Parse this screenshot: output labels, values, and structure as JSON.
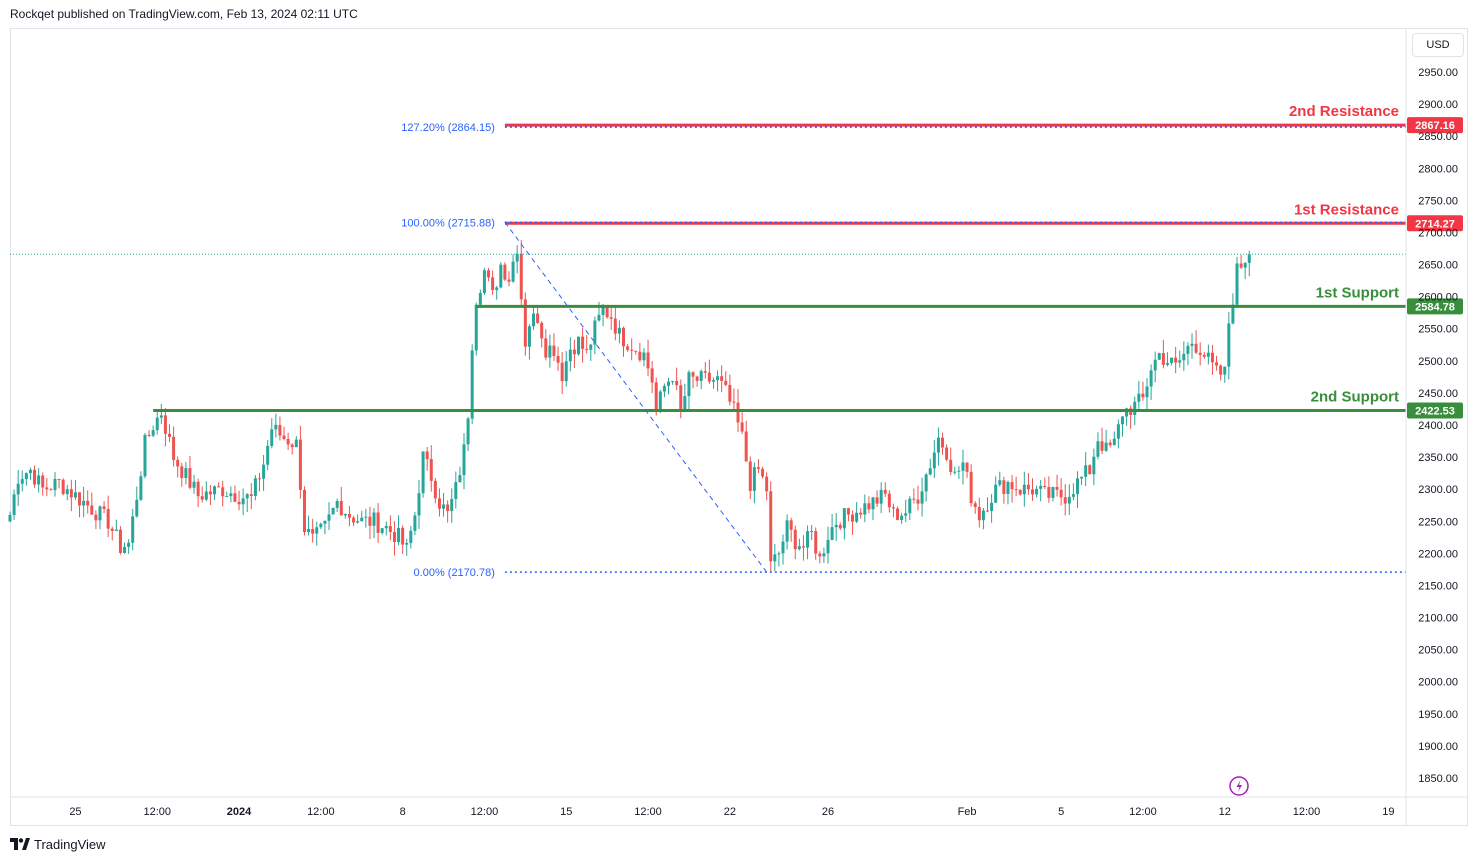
{
  "header": {
    "publisher": "Rockqet published on TradingView.com, Feb 13, 2024 02:11 UTC"
  },
  "currency_button": "USD",
  "footer": {
    "brand": "TradingView"
  },
  "colors": {
    "up": "#26a69a",
    "down": "#ef5350",
    "resistance": "#f23645",
    "support": "#388e3c",
    "fib": "#2962ff",
    "fib_text": "#2962ff"
  },
  "chart_data": {
    "type": "candlestick",
    "title": "",
    "ylabel": "",
    "xlabel": "",
    "ylim": [
      1820,
      2990
    ],
    "y_ticks": [
      1850,
      1900,
      1950,
      2000,
      2050,
      2100,
      2150,
      2200,
      2250,
      2300,
      2350,
      2400,
      2450,
      2500,
      2550,
      2600,
      2650,
      2700,
      2750,
      2800,
      2850,
      2900,
      2950
    ],
    "x_ticks": [
      {
        "label": "25",
        "bar": 16,
        "bold": false
      },
      {
        "label": "12:00",
        "bar": 36,
        "bold": false
      },
      {
        "label": "2024",
        "bar": 56,
        "bold": true
      },
      {
        "label": "12:00",
        "bar": 76,
        "bold": false
      },
      {
        "label": "8",
        "bar": 96,
        "bold": false
      },
      {
        "label": "12:00",
        "bar": 116,
        "bold": false
      },
      {
        "label": "15",
        "bar": 136,
        "bold": false
      },
      {
        "label": "12:00",
        "bar": 156,
        "bold": false
      },
      {
        "label": "22",
        "bar": 176,
        "bold": false
      },
      {
        "label": "26",
        "bar": 200,
        "bold": false
      },
      {
        "label": "Feb",
        "bar": 234,
        "bold": false
      },
      {
        "label": "5",
        "bar": 257,
        "bold": false
      },
      {
        "label": "12:00",
        "bar": 277,
        "bold": false
      },
      {
        "label": "12",
        "bar": 297,
        "bold": false
      },
      {
        "label": "12:00",
        "bar": 317,
        "bold": false
      },
      {
        "label": "19",
        "bar": 337,
        "bold": false
      }
    ],
    "bars": 340,
    "last_bar": 303,
    "last_price": 2666,
    "anchors": [
      [
        0,
        2260
      ],
      [
        2,
        2320
      ],
      [
        5,
        2330
      ],
      [
        8,
        2300
      ],
      [
        12,
        2310
      ],
      [
        16,
        2290
      ],
      [
        20,
        2270
      ],
      [
        24,
        2250
      ],
      [
        27,
        2210
      ],
      [
        29,
        2215
      ],
      [
        31,
        2290
      ],
      [
        33,
        2370
      ],
      [
        35,
        2400
      ],
      [
        37,
        2420
      ],
      [
        40,
        2350
      ],
      [
        43,
        2320
      ],
      [
        46,
        2290
      ],
      [
        49,
        2295
      ],
      [
        52,
        2300
      ],
      [
        56,
        2290
      ],
      [
        59,
        2285
      ],
      [
        62,
        2340
      ],
      [
        64,
        2395
      ],
      [
        67,
        2380
      ],
      [
        70,
        2370
      ],
      [
        71,
        2310
      ],
      [
        72,
        2240
      ],
      [
        74,
        2220
      ],
      [
        77,
        2240
      ],
      [
        80,
        2280
      ],
      [
        83,
        2260
      ],
      [
        86,
        2250
      ],
      [
        89,
        2250
      ],
      [
        92,
        2240
      ],
      [
        95,
        2225
      ],
      [
        97,
        2205
      ],
      [
        99,
        2260
      ],
      [
        101,
        2350
      ],
      [
        103,
        2320
      ],
      [
        105,
        2280
      ],
      [
        107,
        2260
      ],
      [
        109,
        2300
      ],
      [
        111,
        2360
      ],
      [
        112,
        2420
      ],
      [
        113,
        2530
      ],
      [
        114,
        2600
      ],
      [
        116,
        2640
      ],
      [
        118,
        2600
      ],
      [
        120,
        2650
      ],
      [
        122,
        2630
      ],
      [
        124,
        2680
      ],
      [
        125,
        2600
      ],
      [
        126,
        2530
      ],
      [
        127,
        2560
      ],
      [
        129,
        2570
      ],
      [
        131,
        2520
      ],
      [
        133,
        2520
      ],
      [
        135,
        2480
      ],
      [
        137,
        2520
      ],
      [
        139,
        2530
      ],
      [
        141,
        2510
      ],
      [
        143,
        2550
      ],
      [
        145,
        2580
      ],
      [
        147,
        2570
      ],
      [
        149,
        2540
      ],
      [
        151,
        2530
      ],
      [
        153,
        2520
      ],
      [
        155,
        2510
      ],
      [
        157,
        2470
      ],
      [
        158,
        2420
      ],
      [
        160,
        2460
      ],
      [
        162,
        2480
      ],
      [
        164,
        2420
      ],
      [
        166,
        2470
      ],
      [
        168,
        2470
      ],
      [
        170,
        2470
      ],
      [
        173,
        2470
      ],
      [
        175,
        2450
      ],
      [
        177,
        2420
      ],
      [
        179,
        2380
      ],
      [
        181,
        2310
      ],
      [
        183,
        2330
      ],
      [
        185,
        2300
      ],
      [
        186,
        2180
      ],
      [
        188,
        2200
      ],
      [
        190,
        2240
      ],
      [
        192,
        2220
      ],
      [
        194,
        2210
      ],
      [
        196,
        2230
      ],
      [
        198,
        2190
      ],
      [
        200,
        2230
      ],
      [
        202,
        2250
      ],
      [
        205,
        2260
      ],
      [
        208,
        2270
      ],
      [
        211,
        2280
      ],
      [
        214,
        2290
      ],
      [
        216,
        2260
      ],
      [
        219,
        2265
      ],
      [
        222,
        2290
      ],
      [
        225,
        2340
      ],
      [
        227,
        2380
      ],
      [
        229,
        2360
      ],
      [
        231,
        2320
      ],
      [
        233,
        2340
      ],
      [
        235,
        2290
      ],
      [
        237,
        2260
      ],
      [
        239,
        2280
      ],
      [
        241,
        2300
      ],
      [
        244,
        2310
      ],
      [
        247,
        2300
      ],
      [
        250,
        2300
      ],
      [
        253,
        2290
      ],
      [
        256,
        2290
      ],
      [
        258,
        2290
      ],
      [
        261,
        2310
      ],
      [
        264,
        2330
      ],
      [
        266,
        2380
      ],
      [
        268,
        2360
      ],
      [
        270,
        2370
      ],
      [
        272,
        2420
      ],
      [
        275,
        2430
      ],
      [
        277,
        2440
      ],
      [
        279,
        2490
      ],
      [
        281,
        2510
      ],
      [
        283,
        2500
      ],
      [
        285,
        2490
      ],
      [
        287,
        2510
      ],
      [
        289,
        2530
      ],
      [
        291,
        2520
      ],
      [
        293,
        2500
      ],
      [
        295,
        2480
      ],
      [
        297,
        2480
      ],
      [
        298,
        2560
      ],
      [
        299,
        2600
      ],
      [
        300,
        2640
      ],
      [
        301,
        2650
      ],
      [
        302,
        2660
      ],
      [
        303,
        2666
      ]
    ],
    "horizontal_levels": [
      {
        "label": "2nd Resistance",
        "value": 2867.16,
        "value_text": "2867.16",
        "kind": "resistance",
        "from_bar": 121
      },
      {
        "label": "1st Resistance",
        "value": 2714.27,
        "value_text": "2714.27",
        "kind": "resistance",
        "from_bar": 121
      },
      {
        "label": "1st Support",
        "value": 2584.78,
        "value_text": "2584.78",
        "kind": "support",
        "from_bar": 114
      },
      {
        "label": "2nd Support",
        "value": 2422.53,
        "value_text": "2422.53",
        "kind": "support",
        "from_bar": 35
      }
    ],
    "fibonacci": [
      {
        "label": "127.20% (2864.15)",
        "value": 2864.15
      },
      {
        "label": "100.00% (2715.88)",
        "value": 2715.88
      },
      {
        "label": "0.00% (2170.78)",
        "value": 2170.78
      }
    ],
    "fib_from_bar": 121,
    "fib_trend": {
      "from_bar": 121,
      "from_value": 2715.88,
      "to_bar": 185,
      "to_value": 2170.78
    }
  }
}
